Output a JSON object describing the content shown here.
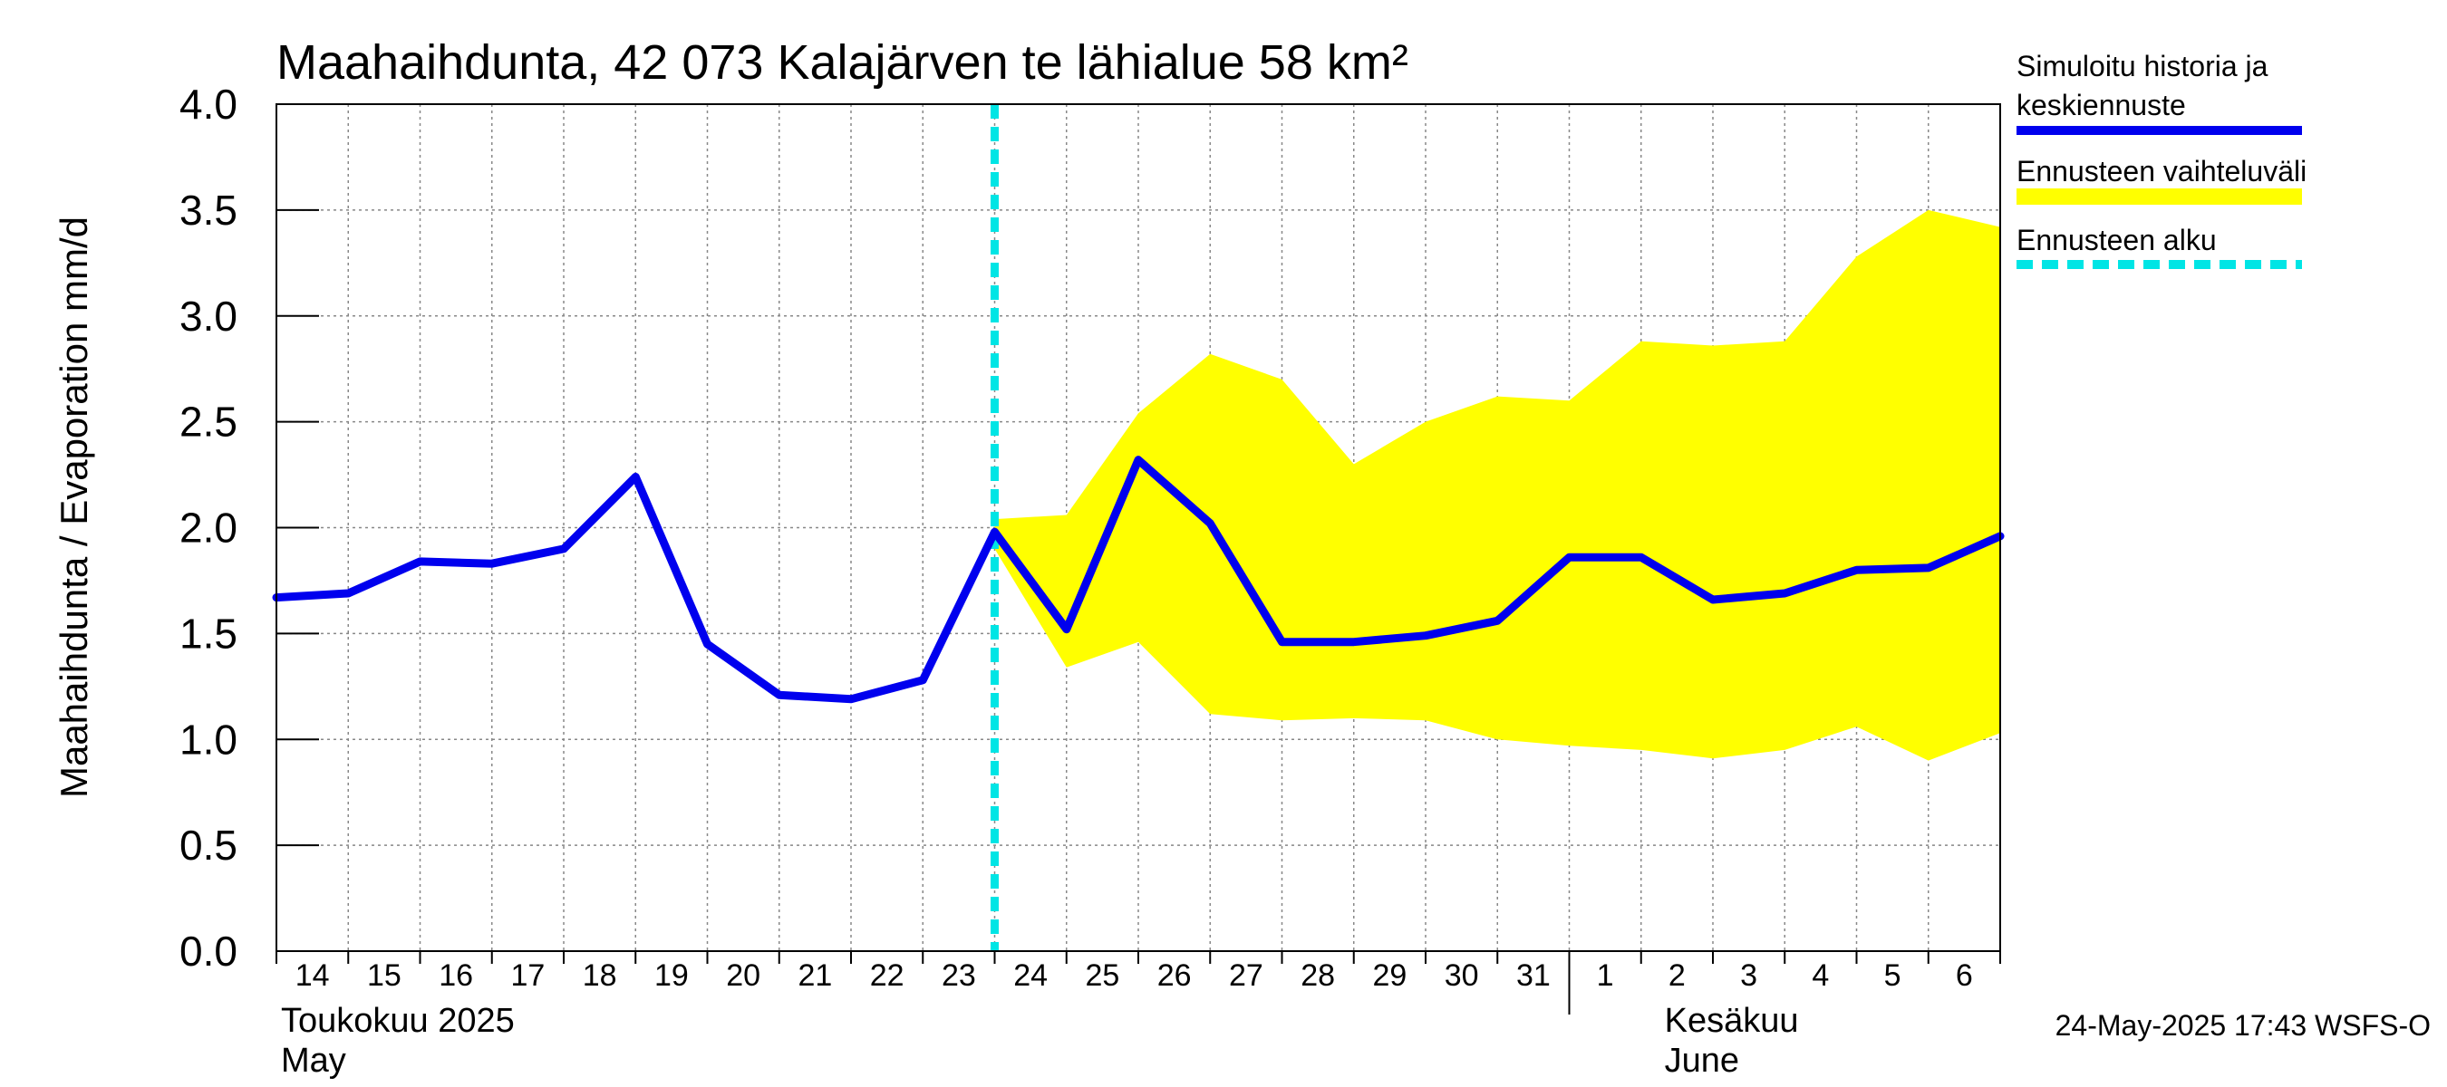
{
  "chart_data": {
    "type": "line",
    "title": "Maahaihdunta, 42 073 Kalajärven te lähialue 58 km²",
    "ylabel": "Maahaihdunta / Evaporation   mm/d",
    "ylim": [
      0.0,
      4.0
    ],
    "yticks": [
      "0.0",
      "0.5",
      "1.0",
      "1.5",
      "2.0",
      "2.5",
      "3.0",
      "3.5",
      "4.0"
    ],
    "x_start": "2025-05-14",
    "x_end": "2025-06-07",
    "xtick_labels": [
      "14",
      "15",
      "16",
      "17",
      "18",
      "19",
      "20",
      "21",
      "22",
      "23",
      "24",
      "25",
      "26",
      "27",
      "28",
      "29",
      "30",
      "31",
      "1",
      "2",
      "3",
      "4",
      "5",
      "6"
    ],
    "month_labels": [
      {
        "line1": "Toukokuu  2025",
        "line2": "May"
      },
      {
        "line1": "Kesäkuu",
        "line2": "June"
      }
    ],
    "forecast_start": "2025-05-24",
    "series": [
      {
        "name": "Simuloitu historia ja keskiennuste",
        "color": "#0000ee",
        "x": [
          "2025-05-14",
          "2025-05-15",
          "2025-05-16",
          "2025-05-17",
          "2025-05-18",
          "2025-05-19",
          "2025-05-20",
          "2025-05-21",
          "2025-05-22",
          "2025-05-23",
          "2025-05-24",
          "2025-05-25",
          "2025-05-26",
          "2025-05-27",
          "2025-05-28",
          "2025-05-29",
          "2025-05-30",
          "2025-05-31",
          "2025-06-01",
          "2025-06-02",
          "2025-06-03",
          "2025-06-04",
          "2025-06-05",
          "2025-06-06",
          "2025-06-07"
        ],
        "values": [
          1.67,
          1.69,
          1.84,
          1.83,
          1.9,
          2.24,
          1.45,
          1.21,
          1.19,
          1.28,
          1.98,
          1.52,
          2.32,
          2.02,
          1.46,
          1.46,
          1.49,
          1.56,
          1.86,
          1.86,
          1.66,
          1.69,
          1.8,
          1.81,
          1.96
        ]
      },
      {
        "name": "Ennusteen vaihteluväli",
        "color": "#ffff00",
        "x": [
          "2025-05-24",
          "2025-05-25",
          "2025-05-26",
          "2025-05-27",
          "2025-05-28",
          "2025-05-29",
          "2025-05-30",
          "2025-05-31",
          "2025-06-01",
          "2025-06-02",
          "2025-06-03",
          "2025-06-04",
          "2025-06-05",
          "2025-06-06",
          "2025-06-07"
        ],
        "upper": [
          2.04,
          2.06,
          2.54,
          2.82,
          2.7,
          2.3,
          2.5,
          2.62,
          2.6,
          2.88,
          2.86,
          2.88,
          3.28,
          3.5,
          3.42
        ],
        "lower": [
          1.9,
          1.34,
          1.46,
          1.12,
          1.09,
          1.1,
          1.09,
          1.0,
          0.97,
          0.95,
          0.91,
          0.95,
          1.06,
          0.9,
          1.03
        ]
      },
      {
        "name": "Ennusteen alku",
        "color": "#00e5e5"
      }
    ],
    "legend_position": "right",
    "grid": true
  },
  "footer": "24-May-2025 17:43 WSFS-O"
}
